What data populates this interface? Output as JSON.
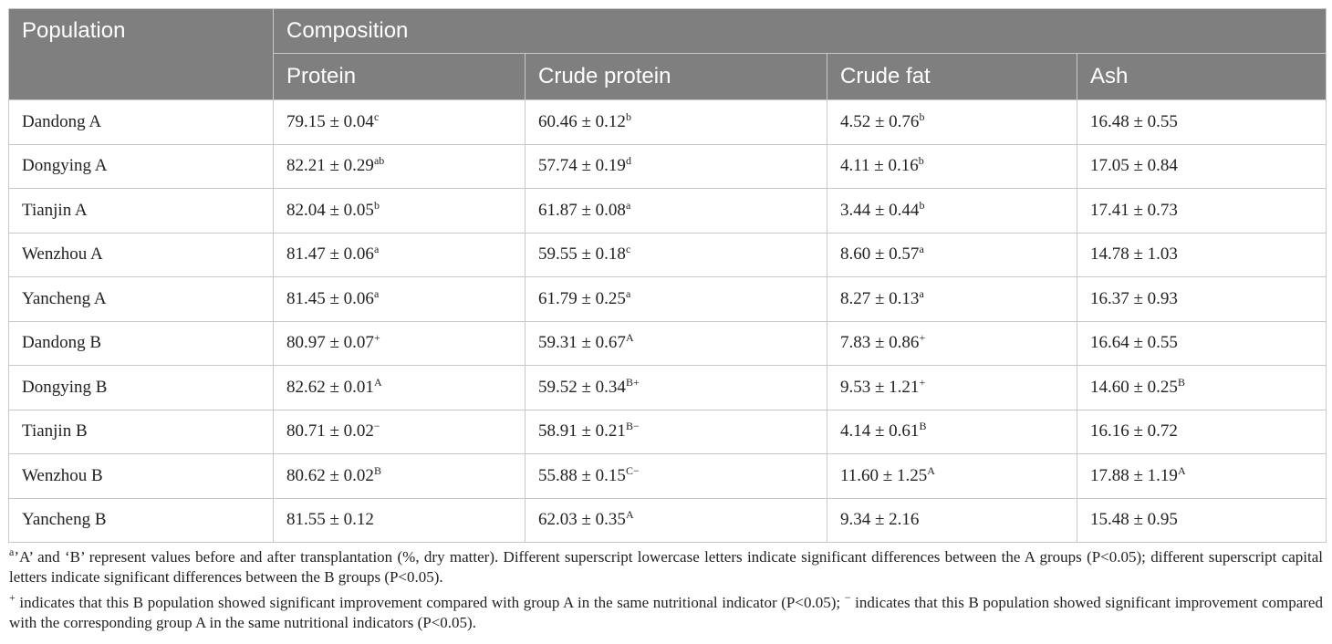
{
  "table": {
    "header": {
      "population": "Population",
      "group": "Composition",
      "columns": [
        "Protein",
        "Crude protein",
        "Crude fat",
        "Ash"
      ]
    },
    "rows": [
      {
        "name": "Dandong A",
        "cells": [
          {
            "text": "79.15 ± 0.04",
            "sup": "c"
          },
          {
            "text": "60.46 ± 0.12",
            "sup": "b"
          },
          {
            "text": "4.52 ± 0.76",
            "sup": "b"
          },
          {
            "text": "16.48 ± 0.55"
          }
        ]
      },
      {
        "name": "Dongying A",
        "cells": [
          {
            "text": "82.21 ± 0.29",
            "sup": "ab"
          },
          {
            "text": "57.74 ± 0.19",
            "sup": "d"
          },
          {
            "text": "4.11 ± 0.16",
            "sup": "b"
          },
          {
            "text": "17.05 ± 0.84"
          }
        ]
      },
      {
        "name": "Tianjin A",
        "cells": [
          {
            "text": "82.04 ± 0.05",
            "sup": "b"
          },
          {
            "text": "61.87 ± 0.08",
            "sup": "a"
          },
          {
            "text": "3.44 ± 0.44",
            "sup": "b"
          },
          {
            "text": "17.41 ± 0.73"
          }
        ]
      },
      {
        "name": "Wenzhou A",
        "cells": [
          {
            "text": "81.47 ± 0.06",
            "sup": "a"
          },
          {
            "text": "59.55 ± 0.18",
            "sup": "c"
          },
          {
            "text": "8.60 ± 0.57",
            "sup": "a"
          },
          {
            "text": "14.78 ± 1.03"
          }
        ]
      },
      {
        "name": "Yancheng A",
        "cells": [
          {
            "text": "81.45 ± 0.06",
            "sup": "a"
          },
          {
            "text": "61.79 ± 0.25",
            "sup": "a"
          },
          {
            "text": "8.27 ± 0.13",
            "sup": "a"
          },
          {
            "text": "16.37 ± 0.93"
          }
        ]
      },
      {
        "name": "Dandong B",
        "cells": [
          {
            "text": "80.97 ± 0.07",
            "sup": "+"
          },
          {
            "text": "59.31 ± 0.67",
            "sup": "A"
          },
          {
            "text": "7.83 ± 0.86",
            "sup": "+"
          },
          {
            "text": "16.64 ± 0.55"
          }
        ]
      },
      {
        "name": "Dongying B",
        "cells": [
          {
            "text": "82.62 ± 0.01",
            "sup": "A"
          },
          {
            "text": "59.52 ± 0.34",
            "sup": "B+"
          },
          {
            "text": "9.53 ± 1.21",
            "sup": "+"
          },
          {
            "text": "14.60 ± 0.25",
            "sup": "B"
          }
        ]
      },
      {
        "name": "Tianjin B",
        "cells": [
          {
            "text": "80.71 ± 0.02",
            "sup": "−"
          },
          {
            "text": "58.91 ± 0.21",
            "sup": "B−"
          },
          {
            "text": "4.14 ± 0.61",
            "sup": "B"
          },
          {
            "text": "16.16 ± 0.72"
          }
        ]
      },
      {
        "name": "Wenzhou B",
        "cells": [
          {
            "text": "80.62 ± 0.02",
            "sup": "B"
          },
          {
            "text": "55.88 ± 0.15",
            "sup": "C−"
          },
          {
            "text": "11.60 ± 1.25",
            "sup": "A"
          },
          {
            "text": "17.88 ± 1.19",
            "sup": "A"
          }
        ]
      },
      {
        "name": "Yancheng B",
        "cells": [
          {
            "text": "81.55 ± 0.12"
          },
          {
            "text": "62.03 ± 0.35",
            "sup": "A"
          },
          {
            "text": "9.34 ± 2.16"
          },
          {
            "text": "15.48 ± 0.95"
          }
        ]
      }
    ],
    "notes": [
      {
        "sup": "a",
        "text": "’A’ and ‘B’ represent values before and after transplantation (%, dry matter). Different superscript lowercase letters indicate significant differences between the A groups (P<0.05); different superscript capital letters indicate significant differences between the B groups (P<0.05)."
      },
      {
        "sup": "+",
        "text": " indicates that this B population showed significant improvement compared with group A in the same nutritional indicator (P<0.05); ",
        "sup2": "−",
        "text2": " indicates that this B population showed significant improvement compared with the corresponding group A in the same nutritional indicators (P<0.05)."
      }
    ]
  }
}
